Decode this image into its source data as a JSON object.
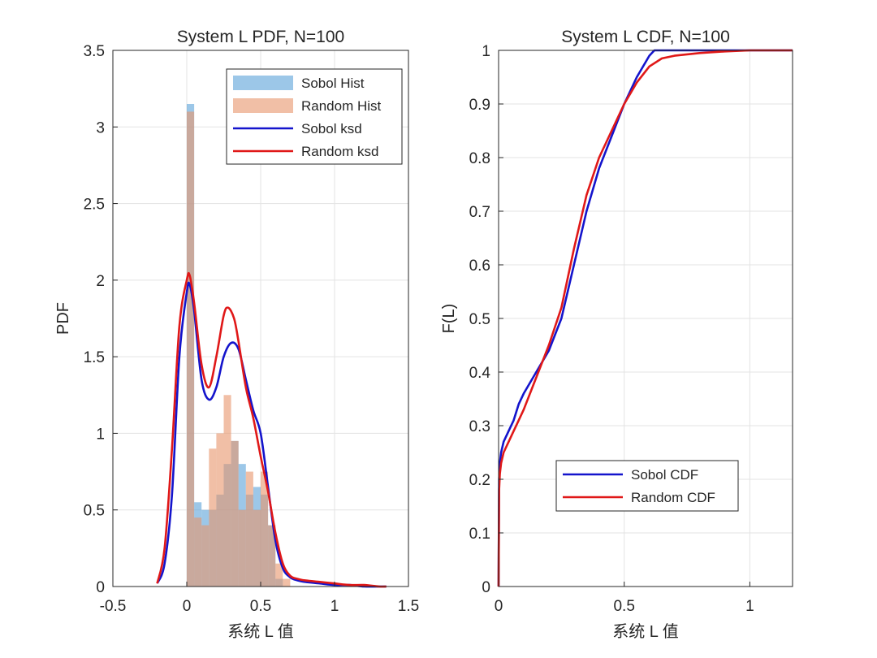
{
  "chart_data": [
    {
      "type": "bar+line",
      "title": "System L PDF, N=100",
      "xlabel": "系统 L 值",
      "ylabel": "PDF",
      "xlim": [
        -0.5,
        1.5
      ],
      "ylim": [
        0,
        3.5
      ],
      "xticks": [
        "-0.5",
        "0",
        "0.5",
        "1",
        "1.5"
      ],
      "yticks": [
        "0",
        "0.5",
        "1",
        "1.5",
        "2",
        "2.5",
        "3",
        "3.5"
      ],
      "grid": true,
      "legend_position": "top-right",
      "histograms": [
        {
          "name": "Sobol Hist",
          "color": "#5aa2d8",
          "bins": [
            [
              0.0,
              0.05
            ],
            [
              0.05,
              0.1
            ],
            [
              0.1,
              0.15
            ],
            [
              0.15,
              0.2
            ],
            [
              0.2,
              0.25
            ],
            [
              0.25,
              0.3
            ],
            [
              0.3,
              0.35
            ],
            [
              0.35,
              0.4
            ],
            [
              0.4,
              0.45
            ],
            [
              0.45,
              0.5
            ],
            [
              0.5,
              0.55
            ],
            [
              0.55,
              0.6
            ],
            [
              0.6,
              0.65
            ],
            [
              0.65,
              0.7
            ]
          ],
          "values": [
            3.15,
            0.55,
            0.5,
            0.5,
            0.6,
            0.8,
            0.95,
            0.8,
            0.6,
            0.65,
            0.6,
            0.4,
            0.05,
            0.0
          ]
        },
        {
          "name": "Random Hist",
          "color": "#e8946a",
          "bins": [
            [
              0.0,
              0.05
            ],
            [
              0.05,
              0.1
            ],
            [
              0.1,
              0.15
            ],
            [
              0.15,
              0.2
            ],
            [
              0.2,
              0.25
            ],
            [
              0.25,
              0.3
            ],
            [
              0.3,
              0.35
            ],
            [
              0.35,
              0.4
            ],
            [
              0.4,
              0.45
            ],
            [
              0.45,
              0.5
            ],
            [
              0.5,
              0.55
            ],
            [
              0.55,
              0.6
            ],
            [
              0.6,
              0.65
            ],
            [
              0.65,
              0.7
            ]
          ],
          "values": [
            3.1,
            0.45,
            0.4,
            0.9,
            1.0,
            1.25,
            0.95,
            0.5,
            0.75,
            0.5,
            0.75,
            0.4,
            0.15,
            0.05
          ]
        }
      ],
      "series": [
        {
          "name": "Sobol ksd",
          "color": "#1414cc",
          "x": [
            -0.2,
            -0.15,
            -0.1,
            -0.05,
            0.0,
            0.02,
            0.05,
            0.1,
            0.15,
            0.2,
            0.25,
            0.3,
            0.35,
            0.4,
            0.45,
            0.5,
            0.55,
            0.6,
            0.65,
            0.7,
            0.75,
            0.8,
            0.9,
            1.0,
            1.1,
            1.2,
            1.3,
            1.35
          ],
          "y": [
            0.02,
            0.15,
            0.6,
            1.5,
            1.92,
            1.97,
            1.8,
            1.35,
            1.22,
            1.3,
            1.5,
            1.59,
            1.55,
            1.35,
            1.15,
            1.0,
            0.65,
            0.3,
            0.12,
            0.06,
            0.04,
            0.03,
            0.02,
            0.01,
            0.01,
            0.0,
            0.0,
            0.0
          ]
        },
        {
          "name": "Random ksd",
          "color": "#e01818",
          "x": [
            -0.2,
            -0.15,
            -0.1,
            -0.05,
            0.0,
            0.02,
            0.05,
            0.1,
            0.15,
            0.2,
            0.25,
            0.28,
            0.32,
            0.35,
            0.4,
            0.45,
            0.5,
            0.55,
            0.6,
            0.65,
            0.7,
            0.75,
            0.8,
            0.9,
            1.0,
            1.1,
            1.2,
            1.3,
            1.35
          ],
          "y": [
            0.02,
            0.25,
            0.9,
            1.7,
            2.0,
            2.03,
            1.85,
            1.45,
            1.3,
            1.5,
            1.77,
            1.82,
            1.75,
            1.6,
            1.3,
            1.1,
            0.85,
            0.62,
            0.35,
            0.15,
            0.07,
            0.05,
            0.04,
            0.03,
            0.02,
            0.01,
            0.01,
            0.0,
            0.0
          ]
        }
      ]
    },
    {
      "type": "line",
      "title": "System L CDF, N=100",
      "xlabel": "系统 L 值",
      "ylabel": "F(L)",
      "xlim": [
        0,
        1.17
      ],
      "ylim": [
        0,
        1
      ],
      "xticks": [
        "0",
        "0.5",
        "1"
      ],
      "yticks": [
        "0",
        "0.1",
        "0.2",
        "0.3",
        "0.4",
        "0.5",
        "0.6",
        "0.7",
        "0.8",
        "0.9",
        "1"
      ],
      "grid": true,
      "legend_position": "bottom-right",
      "series": [
        {
          "name": "Sobol CDF",
          "color": "#1414cc",
          "x": [
            0.0,
            0.002,
            0.005,
            0.01,
            0.02,
            0.04,
            0.06,
            0.08,
            0.1,
            0.15,
            0.2,
            0.25,
            0.3,
            0.35,
            0.4,
            0.45,
            0.5,
            0.55,
            0.6,
            0.62,
            0.65,
            0.7,
            0.8,
            0.9,
            1.0,
            1.05,
            1.17
          ],
          "y": [
            0.0,
            0.2,
            0.23,
            0.25,
            0.27,
            0.29,
            0.31,
            0.34,
            0.36,
            0.4,
            0.44,
            0.5,
            0.6,
            0.7,
            0.78,
            0.84,
            0.9,
            0.95,
            0.99,
            1.0,
            1.0,
            1.0,
            1.0,
            1.0,
            1.0,
            1.0,
            1.0
          ]
        },
        {
          "name": "Random CDF",
          "color": "#e01818",
          "x": [
            0.0,
            0.002,
            0.005,
            0.01,
            0.02,
            0.04,
            0.06,
            0.08,
            0.1,
            0.15,
            0.2,
            0.25,
            0.3,
            0.35,
            0.4,
            0.45,
            0.5,
            0.55,
            0.6,
            0.65,
            0.7,
            0.8,
            0.9,
            1.0,
            1.05,
            1.17
          ],
          "y": [
            0.0,
            0.18,
            0.21,
            0.23,
            0.25,
            0.27,
            0.29,
            0.31,
            0.33,
            0.39,
            0.45,
            0.52,
            0.63,
            0.73,
            0.8,
            0.85,
            0.9,
            0.94,
            0.97,
            0.985,
            0.99,
            0.995,
            0.998,
            1.0,
            1.0,
            1.0
          ]
        }
      ]
    }
  ]
}
